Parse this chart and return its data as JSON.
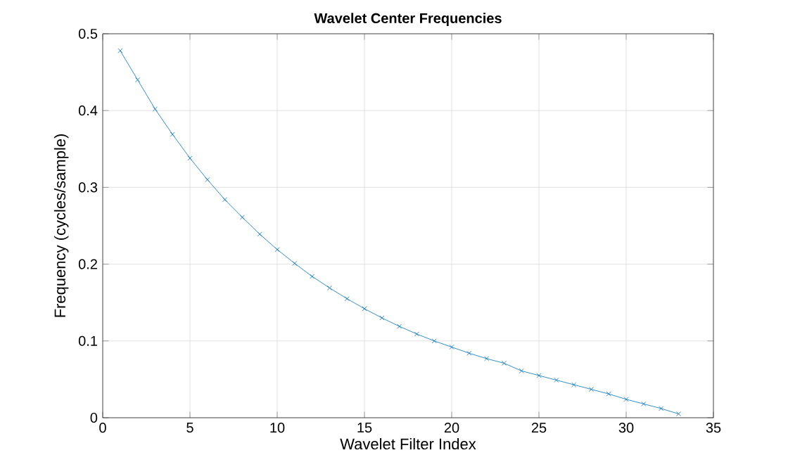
{
  "chart_data": {
    "type": "line",
    "title": "Wavelet Center Frequencies",
    "xlabel": "Wavelet Filter Index",
    "ylabel": "Frequency (cycles/sample)",
    "x": [
      1,
      2,
      3,
      4,
      5,
      6,
      7,
      8,
      9,
      10,
      11,
      12,
      13,
      14,
      15,
      16,
      17,
      18,
      19,
      20,
      21,
      22,
      23,
      24,
      25,
      26,
      27,
      28,
      29,
      30,
      31,
      32,
      33
    ],
    "series": [
      {
        "color": "#0072bd",
        "values": [
          0.478,
          0.44,
          0.402,
          0.369,
          0.338,
          0.31,
          0.284,
          0.261,
          0.239,
          0.219,
          0.201,
          0.184,
          0.169,
          0.155,
          0.142,
          0.13,
          0.119,
          0.109,
          0.1,
          0.092,
          0.084,
          0.077,
          0.071,
          0.061,
          0.055,
          0.049,
          0.043,
          0.037,
          0.031,
          0.024,
          0.018,
          0.012,
          0.005
        ]
      }
    ],
    "xlim": [
      0,
      35
    ],
    "ylim": [
      0,
      0.5
    ],
    "xticks": [
      0,
      5,
      10,
      15,
      20,
      25,
      30,
      35
    ],
    "yticks": [
      0,
      0.1,
      0.2,
      0.3,
      0.4,
      0.5
    ],
    "grid": true,
    "marker": "cross",
    "line_style": "solid"
  }
}
